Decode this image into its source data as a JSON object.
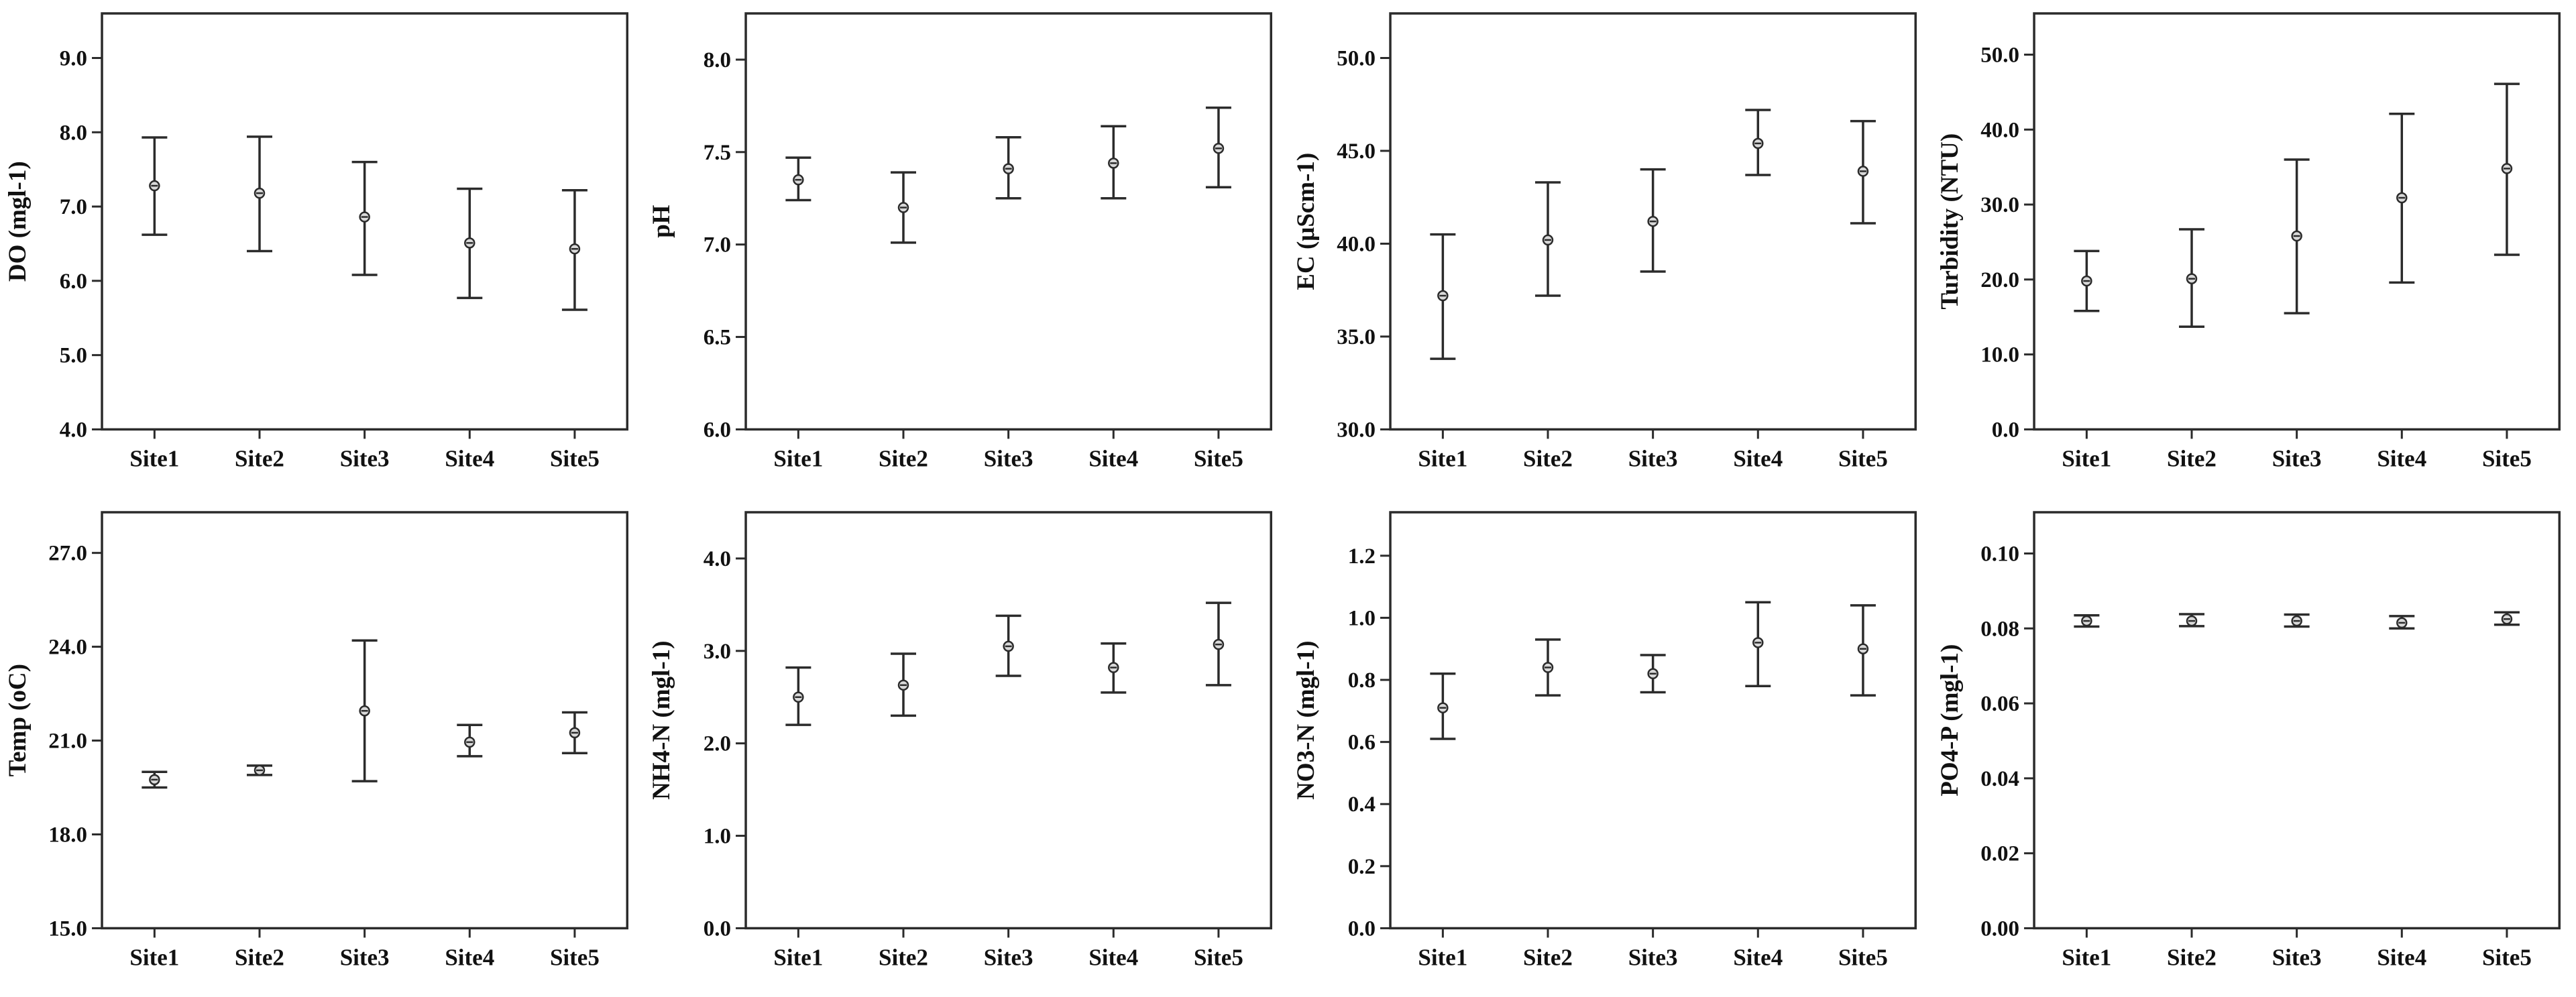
{
  "figure": {
    "description": "2x4 grid of mean-with-error-bar plots of water quality parameters across five sites",
    "background": "#ffffff",
    "stroke_color": "#2b2b2b",
    "text_color": "#111111",
    "marker_fill": "#d9d9d9",
    "grid": false,
    "legend": "none"
  },
  "chart_data": [
    {
      "key": "do",
      "type": "errorbar",
      "title": "",
      "xlabel": "",
      "ylabel": "DO (mgl-1)",
      "categories": [
        "Site1",
        "Site2",
        "Site3",
        "Site4",
        "Site5"
      ],
      "ylim": [
        4.0,
        9.6
      ],
      "yticks": [
        4.0,
        5.0,
        6.0,
        7.0,
        8.0,
        9.0
      ],
      "ytick_labels": [
        "4.0",
        "5.0",
        "6.0",
        "7.0",
        "8.0",
        "9.0"
      ],
      "series": [
        {
          "name": "mean with error bar",
          "means": [
            7.28,
            7.18,
            6.86,
            6.51,
            6.43
          ],
          "lower": [
            6.62,
            6.4,
            6.08,
            5.77,
            5.61
          ],
          "upper": [
            7.93,
            7.94,
            7.6,
            7.24,
            7.22
          ]
        }
      ]
    },
    {
      "key": "ph",
      "type": "errorbar",
      "title": "",
      "xlabel": "",
      "ylabel": "pH",
      "categories": [
        "Site1",
        "Site2",
        "Site3",
        "Site4",
        "Site5"
      ],
      "ylim": [
        6.0,
        8.25
      ],
      "yticks": [
        6.0,
        6.5,
        7.0,
        7.5,
        8.0
      ],
      "ytick_labels": [
        "6.0",
        "6.5",
        "7.0",
        "7.5",
        "8.0"
      ],
      "series": [
        {
          "name": "mean with error bar",
          "means": [
            7.35,
            7.2,
            7.41,
            7.44,
            7.52
          ],
          "lower": [
            7.24,
            7.01,
            7.25,
            7.25,
            7.31
          ],
          "upper": [
            7.47,
            7.39,
            7.58,
            7.64,
            7.74
          ]
        }
      ]
    },
    {
      "key": "ec",
      "type": "errorbar",
      "title": "",
      "xlabel": "",
      "ylabel": "EC (μScm-1)",
      "categories": [
        "Site1",
        "Site2",
        "Site3",
        "Site4",
        "Site5"
      ],
      "ylim": [
        30.0,
        52.4
      ],
      "yticks": [
        30.0,
        35.0,
        40.0,
        45.0,
        50.0
      ],
      "ytick_labels": [
        "30.0",
        "35.0",
        "40.0",
        "45.0",
        "50.0"
      ],
      "series": [
        {
          "name": "mean with error bar",
          "means": [
            37.2,
            40.2,
            41.2,
            45.4,
            43.9
          ],
          "lower": [
            33.8,
            37.2,
            38.5,
            43.7,
            41.1
          ],
          "upper": [
            40.5,
            43.3,
            44.0,
            47.2,
            46.6
          ]
        }
      ]
    },
    {
      "key": "turbidity",
      "type": "errorbar",
      "title": "",
      "xlabel": "",
      "ylabel": "Turbidity (NTU)",
      "categories": [
        "Site1",
        "Site2",
        "Site3",
        "Site4",
        "Site5"
      ],
      "ylim": [
        0.0,
        55.5
      ],
      "yticks": [
        0.0,
        10.0,
        20.0,
        30.0,
        40.0,
        50.0
      ],
      "ytick_labels": [
        "0.0",
        "10.0",
        "20.0",
        "30.0",
        "40.0",
        "50.0"
      ],
      "series": [
        {
          "name": "mean with error bar",
          "means": [
            19.8,
            20.1,
            25.8,
            30.9,
            34.8
          ],
          "lower": [
            15.8,
            13.7,
            15.5,
            19.6,
            23.3
          ],
          "upper": [
            23.8,
            26.7,
            36.0,
            42.1,
            46.1
          ]
        }
      ]
    },
    {
      "key": "temp",
      "type": "errorbar",
      "title": "",
      "xlabel": "",
      "ylabel": "Temp (oC)",
      "categories": [
        "Site1",
        "Site2",
        "Site3",
        "Site4",
        "Site5"
      ],
      "ylim": [
        15.0,
        28.3
      ],
      "yticks": [
        15.0,
        18.0,
        21.0,
        24.0,
        27.0
      ],
      "ytick_labels": [
        "15.0",
        "18.0",
        "21.0",
        "24.0",
        "27.0"
      ],
      "series": [
        {
          "name": "mean with error bar",
          "means": [
            19.75,
            20.05,
            21.95,
            20.95,
            21.25
          ],
          "lower": [
            19.5,
            19.9,
            19.7,
            20.5,
            20.6
          ],
          "upper": [
            20.0,
            20.2,
            24.2,
            21.5,
            21.9
          ]
        }
      ]
    },
    {
      "key": "nh4n",
      "type": "errorbar",
      "title": "",
      "xlabel": "",
      "ylabel": "NH4-N (mgl-1)",
      "categories": [
        "Site1",
        "Site2",
        "Site3",
        "Site4",
        "Site5"
      ],
      "ylim": [
        0.0,
        4.5
      ],
      "yticks": [
        0.0,
        1.0,
        2.0,
        3.0,
        4.0
      ],
      "ytick_labels": [
        "0.0",
        "1.0",
        "2.0",
        "3.0",
        "4.0"
      ],
      "series": [
        {
          "name": "mean with error bar",
          "means": [
            2.5,
            2.63,
            3.05,
            2.82,
            3.07
          ],
          "lower": [
            2.2,
            2.3,
            2.73,
            2.55,
            2.63
          ],
          "upper": [
            2.82,
            2.97,
            3.38,
            3.08,
            3.52
          ]
        }
      ]
    },
    {
      "key": "no3n",
      "type": "errorbar",
      "title": "",
      "xlabel": "",
      "ylabel": "NO3-N (mgl-1)",
      "categories": [
        "Site1",
        "Site2",
        "Site3",
        "Site4",
        "Site5"
      ],
      "ylim": [
        0.0,
        1.34
      ],
      "yticks": [
        0.0,
        0.2,
        0.4,
        0.6,
        0.8,
        1.0,
        1.2
      ],
      "ytick_labels": [
        "0.0",
        "0.2",
        "0.4",
        "0.6",
        "0.8",
        "1.0",
        "1.2"
      ],
      "series": [
        {
          "name": "mean with error bar",
          "means": [
            0.71,
            0.84,
            0.82,
            0.92,
            0.9
          ],
          "lower": [
            0.61,
            0.75,
            0.76,
            0.78,
            0.75
          ],
          "upper": [
            0.82,
            0.93,
            0.88,
            1.05,
            1.04
          ]
        }
      ]
    },
    {
      "key": "po4p",
      "type": "errorbar",
      "title": "",
      "xlabel": "",
      "ylabel": "PO4-P (mgl-1)",
      "categories": [
        "Site1",
        "Site2",
        "Site3",
        "Site4",
        "Site5"
      ],
      "ylim": [
        0.0,
        0.111
      ],
      "yticks": [
        0.0,
        0.02,
        0.04,
        0.06,
        0.08,
        0.1
      ],
      "ytick_labels": [
        "0.00",
        "0.02",
        "0.04",
        "0.06",
        "0.08",
        "0.10"
      ],
      "series": [
        {
          "name": "mean with error bar",
          "means": [
            0.082,
            0.082,
            0.082,
            0.0815,
            0.0825
          ],
          "lower": [
            0.0805,
            0.0806,
            0.0805,
            0.08,
            0.081
          ],
          "upper": [
            0.0835,
            0.0838,
            0.0837,
            0.0833,
            0.0843
          ]
        }
      ]
    }
  ]
}
